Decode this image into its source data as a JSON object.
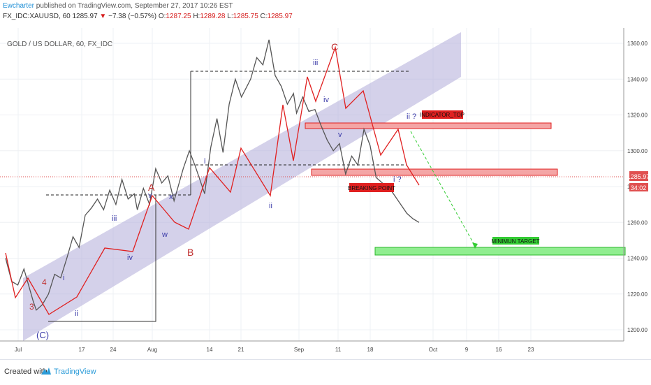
{
  "header": {
    "publisher": "Ewcharter",
    "published_text": "published on TradingView.com, September 27, 2017 10:26 EST",
    "symbol": "FX_IDC:XAUUSD, 60",
    "last": "1285.97",
    "change_arrow": "▼",
    "change": "−7.38 (−0.57%)",
    "o_label": "O:",
    "o": "1287.25",
    "h_label": "H:",
    "h": "1289.28",
    "l_label": "L:",
    "l": "1285.75",
    "c_label": "C:",
    "c": "1285.97"
  },
  "footer": {
    "created": "Created with",
    "brand": "TradingView"
  },
  "chart_data": {
    "type": "line",
    "title": "GOLD / US DOLLAR, 60, FX_IDC",
    "ylim": [
      1193,
      1367
    ],
    "y_ticks": [
      1200,
      1220,
      1240,
      1260,
      1280,
      1300,
      1320,
      1340,
      1360
    ],
    "y_tick_labels": [
      "1200.00",
      "1220.00",
      "1240.00",
      "1260.00",
      "1280.00",
      "1300.00",
      "1320.00",
      "1340.00",
      "1360.00"
    ],
    "x_ticks": [
      "Jul",
      "17",
      "24",
      "Aug",
      "14",
      "21",
      "Sep",
      "11",
      "18",
      "Oct",
      "9",
      "16",
      "23"
    ],
    "price_label": "1285.97",
    "countdown_label": "34:02",
    "series": [
      {
        "x_day": [
          0,
          2,
          4,
          6,
          9,
          10,
          12,
          14,
          16,
          18,
          20,
          22,
          24,
          26,
          28,
          30,
          32,
          34,
          36,
          38,
          40,
          42,
          43,
          45,
          47,
          49,
          51,
          53,
          55,
          58,
          60,
          62,
          65,
          67,
          69,
          71,
          73,
          75,
          77,
          80,
          82,
          84,
          86,
          88,
          90,
          92,
          94,
          95,
          97,
          99,
          101,
          103,
          105,
          107,
          109,
          111,
          113,
          115,
          117,
          119,
          121,
          123,
          125,
          127,
          129,
          131,
          133,
          135
        ],
        "close": [
          1240,
          1227,
          1225,
          1234,
          1216,
          1211,
          1214,
          1220,
          1231,
          1229,
          1240,
          1252,
          1246,
          1264,
          1268,
          1273,
          1267,
          1278,
          1270,
          1284,
          1273,
          1276,
          1267,
          1279,
          1270,
          1290,
          1282,
          1286,
          1272,
          1290,
          1300,
          1291,
          1276,
          1302,
          1318,
          1299,
          1326,
          1340,
          1330,
          1340,
          1352,
          1348,
          1362,
          1342,
          1336,
          1326,
          1332,
          1321,
          1330,
          1322,
          1323,
          1314,
          1306,
          1300,
          1304,
          1287,
          1297,
          1292,
          1312,
          1303,
          1285,
          1282,
          1280,
          1275,
          1270,
          1265,
          1262,
          1260
        ]
      }
    ],
    "annotations": {
      "waves_red": [
        "3",
        "4",
        "A",
        "B",
        "C",
        "(C)"
      ],
      "waves_blue": [
        "i",
        "ii",
        "iii",
        "iv",
        "v",
        "x",
        "w",
        "i",
        "ii",
        "iii",
        "iv",
        "v",
        "i ?",
        "ii ?"
      ],
      "boxes": [
        {
          "label": "INDICATOR_TOP",
          "range": [
            1313.5,
            1316
          ]
        },
        {
          "label": "BREAKING POINT",
          "range": [
            1287,
            1290
          ]
        },
        {
          "label": "MINIMUN TARGET",
          "range": [
            1243,
            1247
          ]
        }
      ]
    }
  }
}
